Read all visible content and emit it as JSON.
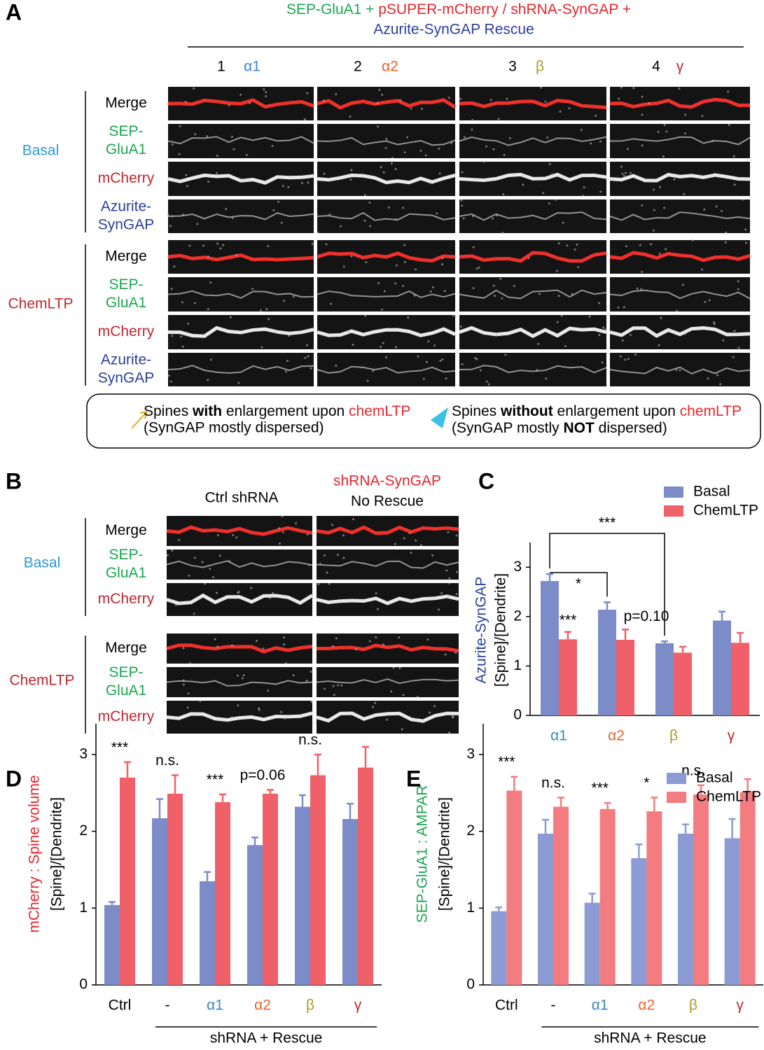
{
  "panel_a": {
    "label": "A",
    "title": [
      "SEP-GluA1 + ",
      "pSUPER-mCherry / shRNA-SynGAP +",
      "Azurite-SynGAP Rescue"
    ],
    "columns": [
      [
        "1",
        "α1"
      ],
      [
        "2",
        "α2"
      ],
      [
        "3",
        "β"
      ],
      [
        "4",
        "γ"
      ]
    ],
    "groups": [
      "Basal",
      "ChemLTP"
    ],
    "rows": [
      [
        "Merge"
      ],
      [
        "SEP-",
        "GluA1"
      ],
      [
        "mCherry"
      ],
      [
        "Azurite-",
        "SynGAP"
      ]
    ],
    "legend": {
      "with": [
        "Spines ",
        "with",
        " enlargement upon ",
        "chemLTP",
        "(SynGAP mostly dispersed)"
      ],
      "without": [
        "Spines ",
        "without",
        " enlargement upon ",
        "chemLTP",
        "(SynGAP mostly ",
        "NOT",
        " dispersed)"
      ]
    }
  },
  "panel_b": {
    "label": "B",
    "columns": [
      "Ctrl shRNA",
      "shRNA-SynGAP",
      "No Rescue"
    ],
    "groups": [
      "Basal",
      "ChemLTP"
    ],
    "rows": [
      [
        "Merge"
      ],
      [
        "SEP-",
        "GluA1"
      ],
      [
        "mCherry"
      ]
    ]
  },
  "chart_data": [
    {
      "type": "bar",
      "label": "C",
      "ylabel": [
        "Azurite-SynGAP",
        "[Spine]/[Dendrite]"
      ],
      "categories": [
        "α1",
        "α2",
        "β",
        "γ"
      ],
      "category_colors": [
        "#3a86c8",
        "#e8642a",
        "#a89a2a",
        "#c0272d"
      ],
      "series": [
        {
          "name": "Basal",
          "color": "#7b8cc8",
          "values": [
            2.72,
            2.14,
            1.46,
            1.92
          ],
          "errors": [
            0.14,
            0.15,
            0.04,
            0.18
          ]
        },
        {
          "name": "ChemLTP",
          "color": "#f06068",
          "values": [
            1.54,
            1.53,
            1.27,
            1.47
          ],
          "errors": [
            0.15,
            0.21,
            0.12,
            0.2
          ]
        }
      ],
      "annotations": [
        "***",
        "*",
        "***",
        "p=0.10"
      ],
      "ylim": [
        0,
        3.5
      ],
      "yticks": [
        0,
        1,
        2,
        3
      ]
    },
    {
      "type": "bar",
      "label": "D",
      "ylabel": [
        "mCherry : Spine volume",
        "[Spine]/[Dendrite]"
      ],
      "categories": [
        "Ctrl",
        "-",
        "α1",
        "α2",
        "β",
        "γ"
      ],
      "category_colors": [
        "#000000",
        "#000000",
        "#3a86c8",
        "#e8642a",
        "#a89a2a",
        "#c0272d"
      ],
      "series": [
        {
          "name": "Basal",
          "color": "#7b8cc8",
          "values": [
            1.04,
            2.17,
            1.35,
            1.82,
            2.32,
            2.16
          ],
          "errors": [
            0.04,
            0.25,
            0.12,
            0.1,
            0.15,
            0.2
          ]
        },
        {
          "name": "ChemLTP",
          "color": "#f06068",
          "values": [
            2.7,
            2.49,
            2.38,
            2.49,
            2.73,
            2.83
          ],
          "errors": [
            0.2,
            0.24,
            0.1,
            0.05,
            0.27,
            0.27
          ]
        }
      ],
      "annotations": [
        "***",
        "n.s.",
        "***",
        "p=0.06",
        "n.s.",
        null
      ],
      "group_label": "shRNA + Rescue",
      "ylim": [
        0,
        3.4
      ],
      "yticks": [
        0,
        1,
        2,
        3
      ]
    },
    {
      "type": "bar",
      "label": "E",
      "ylabel": [
        "SEP-GluA1 : AMPAR",
        "[Spine]/[Dendrite]"
      ],
      "categories": [
        "Ctrl",
        "-",
        "α1",
        "α2",
        "β",
        "γ"
      ],
      "category_colors": [
        "#000000",
        "#000000",
        "#3a86c8",
        "#e8642a",
        "#a89a2a",
        "#c0272d"
      ],
      "series": [
        {
          "name": "Basal",
          "color": "#8d9bd4",
          "values": [
            0.96,
            1.97,
            1.07,
            1.65,
            1.97,
            1.91
          ],
          "errors": [
            0.05,
            0.18,
            0.12,
            0.18,
            0.12,
            0.25
          ]
        },
        {
          "name": "ChemLTP",
          "color": "#f27c80",
          "values": [
            2.53,
            2.32,
            2.29,
            2.26,
            2.48,
            2.51
          ],
          "errors": [
            0.18,
            0.12,
            0.08,
            0.18,
            0.12,
            0.17
          ]
        }
      ],
      "annotations": [
        "***",
        "n.s.",
        "***",
        "*",
        "n.s.",
        null
      ],
      "group_label": "shRNA + Rescue",
      "ylim": [
        0,
        3.4
      ],
      "yticks": [
        0,
        1,
        2,
        3
      ]
    }
  ]
}
